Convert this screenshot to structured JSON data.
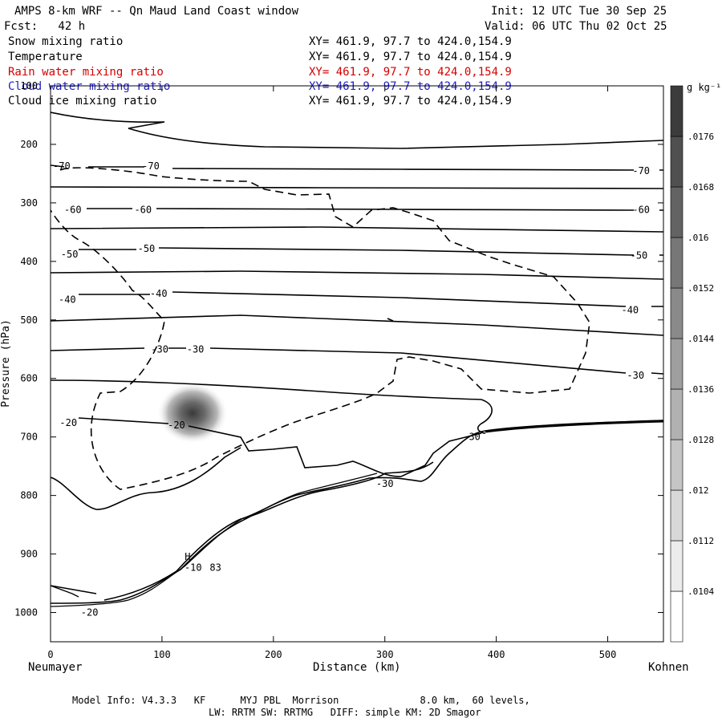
{
  "header": {
    "title": "AMPS 8-km WRF -- Qn Maud Land Coast window",
    "init": "Init: 12 UTC Tue 30 Sep 25",
    "fcst": "Fcst:   42 h",
    "valid": "Valid: 06 UTC Thu 02 Oct 25"
  },
  "legend": [
    {
      "name": "Snow mixing ratio",
      "xy": "XY= 461.9, 97.7 to 424.0,154.9",
      "color": "#000000"
    },
    {
      "name": "Temperature",
      "xy": "XY= 461.9, 97.7 to 424.0,154.9",
      "color": "#000000"
    },
    {
      "name": "Rain water mixing ratio",
      "xy": "XY= 461.9, 97.7 to 424.0,154.9",
      "color": "#d40000"
    },
    {
      "name": "Cloud water mixing ratio",
      "xy": "XY= 461.9, 97.7 to 424.0,154.9",
      "color": "#2020c0"
    },
    {
      "name": "Cloud ice mixing ratio",
      "xy": "XY= 461.9, 97.7 to 424.0,154.9",
      "color": "#000000"
    }
  ],
  "axes": {
    "xlabel": "Distance (km)",
    "ylabel": "Pressure (hPa)",
    "left_end": "Neumayer",
    "right_end": "Kohnen"
  },
  "colorbar": {
    "unit": "g kg⁻¹"
  },
  "model_info": {
    "line1": "Model Info: V4.3.3   KF      MYJ PBL  Morrison              8.0 km,  60 levels,",
    "line2": "LW: RRTM SW: RRTMG   DIFF: simple KM: 2D Smagor"
  },
  "chart_data": {
    "type": "contour",
    "x": {
      "label": "Distance (km)",
      "range": [
        0,
        550
      ],
      "ticks": [
        0,
        100,
        200,
        300,
        400,
        500
      ]
    },
    "y": {
      "label": "Pressure (hPa)",
      "range": [
        100,
        1050
      ],
      "inverted": true,
      "ticks": [
        100,
        200,
        300,
        400,
        500,
        600,
        700,
        800,
        900,
        1000
      ]
    },
    "temperature_contour_labels": [
      {
        "x": 10,
        "p": 237,
        "text": "-70"
      },
      {
        "x": 90,
        "p": 237,
        "text": "-70"
      },
      {
        "x": 530,
        "p": 245,
        "text": "-70"
      },
      {
        "x": 20,
        "p": 312,
        "text": "-60"
      },
      {
        "x": 83,
        "p": 312,
        "text": "-60"
      },
      {
        "x": 530,
        "p": 312,
        "text": "-60"
      },
      {
        "x": 17,
        "p": 388,
        "text": "-50"
      },
      {
        "x": 86,
        "p": 378,
        "text": "-50"
      },
      {
        "x": 528,
        "p": 390,
        "text": "-50"
      },
      {
        "x": 15,
        "p": 465,
        "text": "-40"
      },
      {
        "x": 97,
        "p": 455,
        "text": "-40"
      },
      {
        "x": 520,
        "p": 483,
        "text": "-40"
      },
      {
        "x": 98,
        "p": 550,
        "text": "-30"
      },
      {
        "x": 130,
        "p": 550,
        "text": "-30"
      },
      {
        "x": 525,
        "p": 595,
        "text": "-30"
      },
      {
        "x": 16,
        "p": 676,
        "text": "-20"
      },
      {
        "x": 113,
        "p": 680,
        "text": "-20"
      },
      {
        "x": 378,
        "p": 700,
        "text": "-30"
      },
      {
        "x": 300,
        "p": 780,
        "text": "-30"
      },
      {
        "x": 128,
        "p": 923,
        "text": "-10"
      },
      {
        "x": 148,
        "p": 923,
        "text": "83"
      },
      {
        "x": 35,
        "p": 1000,
        "text": "-20"
      }
    ],
    "high_marker": {
      "x": 123,
      "p": 905,
      "text": "H"
    },
    "cloud_ice_max": {
      "x": 128,
      "p": 660,
      "value": 0.0176
    },
    "colorbar_levels": [
      0.0104,
      0.0112,
      0.012,
      0.0128,
      0.0136,
      0.0144,
      0.0152,
      0.016,
      0.0168,
      0.0176
    ]
  }
}
